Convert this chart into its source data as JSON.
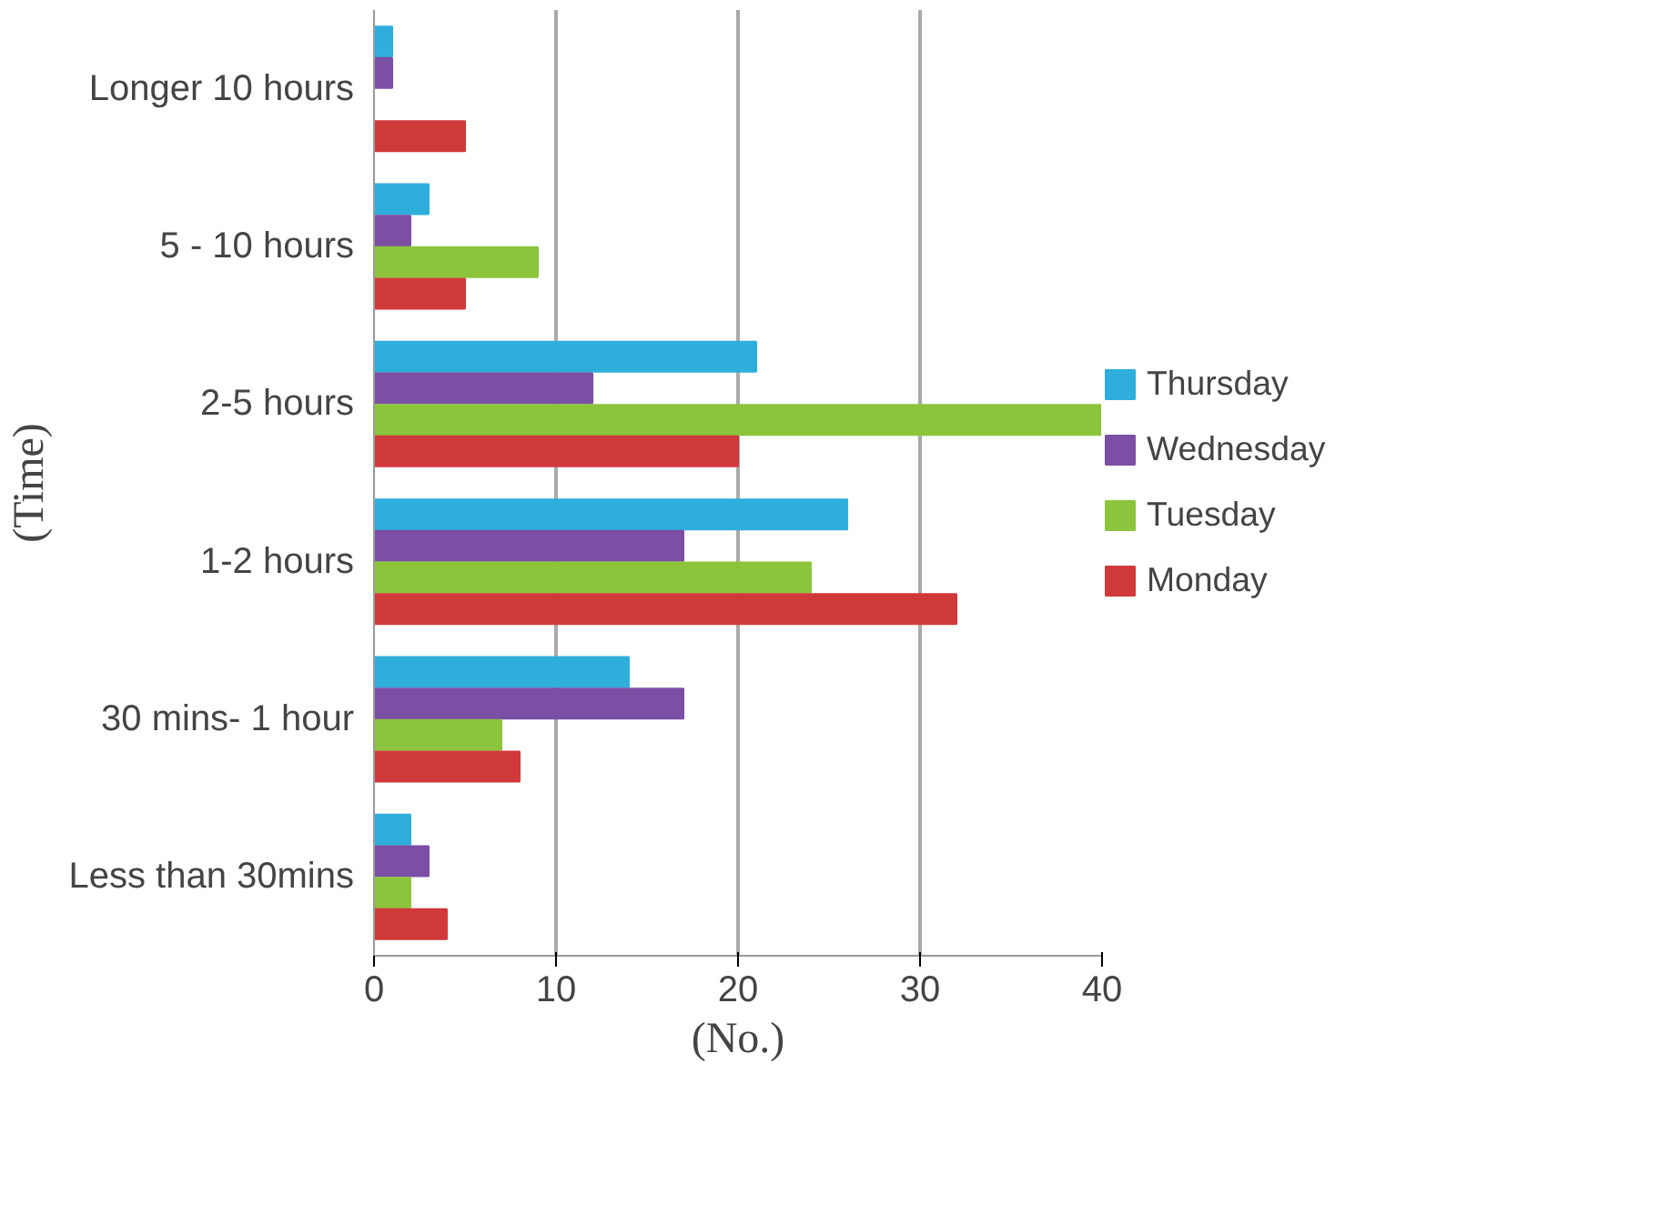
{
  "chart_data": {
    "type": "bar",
    "orientation": "horizontal",
    "xlabel": "(No.)",
    "ylabel": "(Time)",
    "categories": [
      "Longer 10 hours",
      "5 - 10 hours",
      "2-5 hours",
      "1-2 hours",
      "30 mins- 1 hour",
      "Less than 30mins"
    ],
    "series": [
      {
        "name": "Thursday",
        "color": "#2eaedb",
        "values": [
          1,
          3,
          21,
          26,
          14,
          2
        ]
      },
      {
        "name": "Wednesday",
        "color": "#7b4fa3",
        "values": [
          1,
          2,
          12,
          17,
          17,
          3
        ]
      },
      {
        "name": "Tuesday",
        "color": "#8cc43c",
        "values": [
          0,
          9,
          40,
          24,
          7,
          2
        ]
      },
      {
        "name": "Monday",
        "color": "#d0393a",
        "values": [
          5,
          5,
          20,
          32,
          8,
          4
        ]
      }
    ],
    "xlim": [
      0,
      40
    ],
    "xticks": [
      0,
      10,
      20,
      30,
      40
    ],
    "grid": "x",
    "legend": "right"
  }
}
